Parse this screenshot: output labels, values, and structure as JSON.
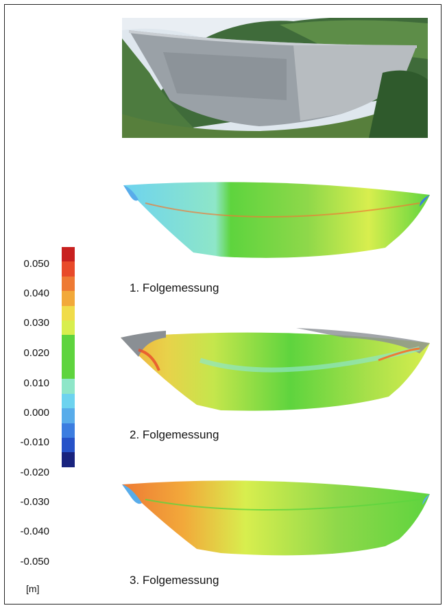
{
  "figure": {
    "photo": {
      "description_icon": "dam-photo-icon"
    },
    "panels": [
      {
        "caption": "1. Folgemessung"
      },
      {
        "caption": "2. Folgemessung"
      },
      {
        "caption": "3. Folgemessung"
      }
    ],
    "legend": {
      "unit": "[m]",
      "labels": [
        "0.050",
        "0.040",
        "0.030",
        "0.020",
        "0.010",
        "0.000",
        "-0.010",
        "-0.020",
        "-0.030",
        "-0.040",
        "-0.050"
      ],
      "colors": [
        "#c8201f",
        "#e84a2a",
        "#ee7a34",
        "#f2a93a",
        "#f0dc4a",
        "#d8ee4e",
        "#5ed43e",
        "#5ed43e",
        "#8ee6c8",
        "#6dd3ef",
        "#58acea",
        "#3c7de0",
        "#2652c8",
        "#19237e"
      ]
    }
  }
}
